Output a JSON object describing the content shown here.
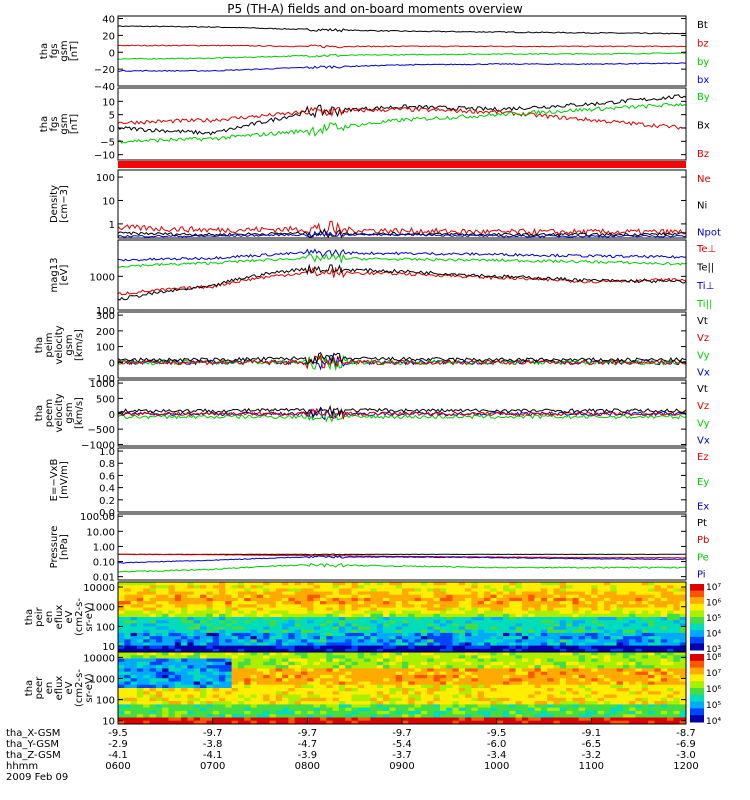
{
  "title": "P5 (TH-A) fields and on-board moments overview",
  "colors": {
    "black": "#000000",
    "red": "#dd0000",
    "green": "#00cc00",
    "blue": "#0000cc",
    "strip": "#ff0000"
  },
  "panels": [
    {
      "id": "fgs",
      "ylabel": [
        "tha",
        "fgs",
        "gsm",
        "[nT]"
      ],
      "ticks": [
        {
          "v": 40,
          "l": "40"
        },
        {
          "v": 20,
          "l": "20"
        },
        {
          "v": 0,
          "l": "0"
        },
        {
          "v": -20,
          "l": "−20"
        },
        {
          "v": -40,
          "l": "−40"
        }
      ],
      "ylim": [
        -40,
        43
      ],
      "legend": [
        {
          "t": "Bt",
          "c": "black"
        },
        {
          "t": "bz",
          "c": "red"
        },
        {
          "t": "by",
          "c": "green"
        },
        {
          "t": "bx",
          "c": "blue"
        }
      ]
    },
    {
      "id": "fgs-angle",
      "ylabel": [
        "tha",
        "fgs",
        "gsm",
        "[nT]"
      ],
      "ticks": [
        {
          "v": 10,
          "l": "10"
        },
        {
          "v": 5,
          "l": "5"
        },
        {
          "v": 0,
          "l": "0"
        },
        {
          "v": -5,
          "l": "−5"
        },
        {
          "v": -10,
          "l": "−10"
        }
      ],
      "ylim": [
        -12,
        15
      ],
      "legend": [
        {
          "t": "By",
          "c": "green"
        },
        {
          "t": "Bx",
          "c": "black"
        },
        {
          "t": "Bz",
          "c": "red"
        }
      ]
    },
    {
      "id": "density",
      "ylabel": [
        "Density",
        "[cm−3]"
      ],
      "ticks": [
        {
          "v": 100,
          "l": "100"
        },
        {
          "v": 10,
          "l": "10"
        },
        {
          "v": 1,
          "l": "1"
        }
      ],
      "ylim": [
        0.25,
        200
      ],
      "log": true,
      "legend": [
        {
          "t": "Ne",
          "c": "red"
        },
        {
          "t": "Ni",
          "c": "black"
        },
        {
          "t": "Npot",
          "c": "blue"
        }
      ]
    },
    {
      "id": "temperature",
      "ylabel": [
        "mag13",
        "[eV]"
      ],
      "ticks": [
        {
          "v": 1000,
          "l": "1000"
        },
        {
          "v": 100,
          "l": "100"
        }
      ],
      "ylim": [
        100,
        12000
      ],
      "log": true,
      "legend": [
        {
          "t": "Te⊥",
          "c": "red"
        },
        {
          "t": "Te||",
          "c": "black"
        },
        {
          "t": "Ti⊥",
          "c": "blue"
        },
        {
          "t": "Ti||",
          "c": "green"
        }
      ]
    },
    {
      "id": "peim-velocity",
      "ylabel": [
        "tha",
        "peim",
        "velocity",
        "gsm",
        "[km/s]"
      ],
      "ticks": [
        {
          "v": 300,
          "l": "300"
        },
        {
          "v": 200,
          "l": "200"
        },
        {
          "v": 100,
          "l": "100"
        },
        {
          "v": 0,
          "l": "0"
        },
        {
          "v": -100,
          "l": "−100"
        }
      ],
      "ylim": [
        -100,
        320
      ],
      "legend": [
        {
          "t": "Vt",
          "c": "black"
        },
        {
          "t": "Vz",
          "c": "red"
        },
        {
          "t": "Vy",
          "c": "green"
        },
        {
          "t": "Vx",
          "c": "blue"
        }
      ]
    },
    {
      "id": "peem-velocity",
      "ylabel": [
        "tha",
        "peem",
        "velocity",
        "gsm",
        "[km/s]"
      ],
      "ticks": [
        {
          "v": 1000,
          "l": "1000"
        },
        {
          "v": 500,
          "l": "500"
        },
        {
          "v": 0,
          "l": "0"
        },
        {
          "v": -500,
          "l": "−500"
        },
        {
          "v": -1000,
          "l": "−1000"
        }
      ],
      "ylim": [
        -1050,
        1100
      ],
      "legend": [
        {
          "t": "Vt",
          "c": "black"
        },
        {
          "t": "Vz",
          "c": "red"
        },
        {
          "t": "Vy",
          "c": "green"
        },
        {
          "t": "Vx",
          "c": "blue"
        }
      ]
    },
    {
      "id": "efield",
      "ylabel": [
        "E=−VxB",
        "[mV/m]"
      ],
      "ticks": [
        {
          "v": 1.0,
          "l": "1.0"
        },
        {
          "v": 0.8,
          "l": "0.8"
        },
        {
          "v": 0.6,
          "l": "0.6"
        },
        {
          "v": 0.4,
          "l": "0.4"
        },
        {
          "v": 0.2,
          "l": "0.2"
        },
        {
          "v": 0.0,
          "l": "0.0"
        }
      ],
      "ylim": [
        0,
        1.05
      ],
      "legend": [
        {
          "t": "Ez",
          "c": "red"
        },
        {
          "t": "Ey",
          "c": "green"
        },
        {
          "t": "Ex",
          "c": "blue"
        }
      ]
    },
    {
      "id": "pressure",
      "ylabel": [
        "Pressure",
        "[nPa]"
      ],
      "ticks": [
        {
          "v": 100,
          "l": "100.00"
        },
        {
          "v": 10,
          "l": "10.00"
        },
        {
          "v": 1,
          "l": "1.00"
        },
        {
          "v": 0.1,
          "l": "0.10"
        },
        {
          "v": 0.01,
          "l": "0.01"
        }
      ],
      "ylim": [
        0.006,
        140
      ],
      "log": true,
      "legend": [
        {
          "t": "Pt",
          "c": "black"
        },
        {
          "t": "Pb",
          "c": "red"
        },
        {
          "t": "Pe",
          "c": "green"
        },
        {
          "t": "Pi",
          "c": "blue"
        }
      ]
    },
    {
      "id": "peir-spec",
      "ylabel": [
        "tha",
        "peir",
        "en",
        "eflux",
        "eV",
        "(cm2-s-",
        "sr-eV)"
      ],
      "ticks": [
        {
          "v": 10000,
          "l": "10000"
        },
        {
          "v": 1000,
          "l": "1000"
        },
        {
          "v": 100,
          "l": "100"
        },
        {
          "v": 10,
          "l": "10"
        }
      ],
      "ylim": [
        5,
        18000
      ],
      "log": true,
      "colorbar": [
        "10⁷",
        "10⁶",
        "10⁵",
        "10⁴",
        "10³"
      ]
    },
    {
      "id": "peer-spec",
      "ylabel": [
        "tha",
        "peer",
        "en",
        "eflux",
        "eV",
        "(cm2-s-",
        "sr-eV)"
      ],
      "ticks": [
        {
          "v": 10000,
          "l": "10000"
        },
        {
          "v": 1000,
          "l": "1000"
        },
        {
          "v": 100,
          "l": "100"
        },
        {
          "v": 10,
          "l": "10"
        }
      ],
      "ylim": [
        7,
        18000
      ],
      "log": true,
      "colorbar": [
        "10⁸",
        "10⁷",
        "10⁶",
        "10⁵",
        "10⁴"
      ]
    }
  ],
  "chart_data": {
    "type": "line",
    "title": "P5 (TH-A) fields and on-board moments overview",
    "x": [
      "0600",
      "0700",
      "0800",
      "0900",
      "1000",
      "1100",
      "1200"
    ],
    "xlabel": "hhmm",
    "date": "2009 Feb 09",
    "orbit_rows": [
      {
        "label": "tha_X-GSM",
        "values": [
          "-9.5",
          "-9.7",
          "-9.7",
          "-9.7",
          "-9.5",
          "-9.1",
          "-8.7"
        ]
      },
      {
        "label": "tha_Y-GSM",
        "values": [
          "-2.9",
          "-3.8",
          "-4.7",
          "-5.4",
          "-6.0",
          "-6.5",
          "-6.9"
        ]
      },
      {
        "label": "tha_Z-GSM",
        "values": [
          "-4.1",
          "-4.1",
          "-3.9",
          "-3.7",
          "-3.4",
          "-3.2",
          "-3.0"
        ]
      }
    ],
    "series": {
      "fgs_Bt": [
        31,
        30,
        27,
        25,
        24,
        23,
        22
      ],
      "fgs_bz": [
        8,
        8,
        7,
        7,
        7,
        7,
        7
      ],
      "fgs_by": [
        -8,
        -7,
        -4,
        -3,
        -2,
        -2,
        -1
      ],
      "fgs_bx": [
        -22,
        -22,
        -18,
        -15,
        -14,
        -14,
        -13
      ],
      "ang_black": [
        0,
        -2,
        6,
        8,
        7,
        9,
        12
      ],
      "ang_red": [
        2,
        3,
        6,
        7,
        6,
        3,
        0
      ],
      "ang_green": [
        -5,
        -4,
        -1,
        3,
        5,
        7,
        9
      ],
      "dens_Ne": [
        0.7,
        0.55,
        0.6,
        0.5,
        0.45,
        0.45,
        0.45
      ],
      "dens_Ni": [
        0.4,
        0.35,
        0.4,
        0.37,
        0.35,
        0.35,
        0.37
      ],
      "dens_Npot": [
        0.3,
        0.3,
        0.35,
        0.35,
        0.3,
        0.3,
        0.3
      ],
      "temp_Te_perp": [
        300,
        500,
        1300,
        1200,
        900,
        700,
        800
      ],
      "temp_Te_par": [
        200,
        500,
        1700,
        1400,
        1000,
        750,
        700
      ],
      "temp_Ti_perp": [
        3000,
        3500,
        5000,
        4800,
        4500,
        4000,
        3700
      ],
      "temp_Ti_par": [
        2000,
        2500,
        3500,
        3200,
        3000,
        2700,
        2300
      ],
      "pres_Pt": [
        0.3,
        0.3,
        0.3,
        0.3,
        0.3,
        0.3,
        0.3
      ],
      "pres_Pb": [
        0.3,
        0.28,
        0.25,
        0.22,
        0.2,
        0.18,
        0.18
      ],
      "pres_Pe": [
        0.02,
        0.03,
        0.06,
        0.05,
        0.04,
        0.04,
        0.04
      ],
      "pres_Pi": [
        0.08,
        0.12,
        0.2,
        0.2,
        0.18,
        0.15,
        0.14
      ]
    }
  }
}
